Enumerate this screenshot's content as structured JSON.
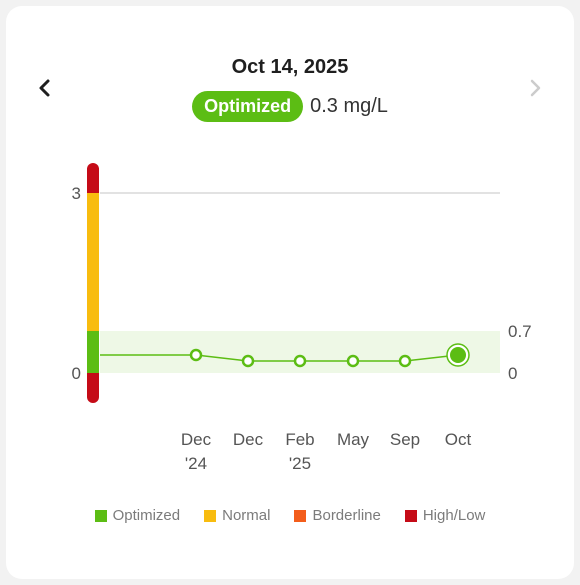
{
  "header": {
    "date": "Oct 14, 2025",
    "status_label": "Optimized",
    "value_text": "0.3 mg/L"
  },
  "nav": {
    "prev_icon": "chevron-left-icon",
    "next_icon": "chevron-right-icon"
  },
  "colors": {
    "optimized": "#5cbd14",
    "normal": "#f8bc0f",
    "borderline": "#f35d1b",
    "highlow": "#c50b17",
    "band": "#eef8e6",
    "grid": "#d9d9d9"
  },
  "legend": [
    {
      "label": "Optimized",
      "color": "#5cbd14"
    },
    {
      "label": "Normal",
      "color": "#f8bc0f"
    },
    {
      "label": "Borderline",
      "color": "#f35d1b"
    },
    {
      "label": "High/Low",
      "color": "#c50b17"
    }
  ],
  "chart_data": {
    "type": "line",
    "x": [
      "Dec '24",
      "Dec",
      "Feb '25",
      "May",
      "Sep",
      "Oct"
    ],
    "x_tick_lines": [
      [
        "Dec",
        "'24"
      ],
      [
        "Dec"
      ],
      [
        "Feb",
        "'25"
      ],
      [
        "May"
      ],
      [
        "Sep"
      ],
      [
        "Oct"
      ]
    ],
    "values": [
      0.3,
      0.2,
      0.2,
      0.2,
      0.2,
      0.3
    ],
    "start_value": 0.3,
    "ylim": [
      0,
      3
    ],
    "y_ticks_left": [
      "3",
      "0"
    ],
    "optimal_range": [
      0,
      0.7
    ],
    "optimal_range_labels": [
      "0.7",
      "0"
    ],
    "highlight_index": 5,
    "gauge_bands": [
      {
        "from": -0.5,
        "to": 0,
        "color": "#c50b17"
      },
      {
        "from": 0,
        "to": 0.7,
        "color": "#5cbd14"
      },
      {
        "from": 0.7,
        "to": 3,
        "color": "#f8bc0f"
      },
      {
        "from": 3,
        "to": 3.5,
        "color": "#c50b17"
      }
    ],
    "grid": true,
    "legend_position": "bottom"
  }
}
